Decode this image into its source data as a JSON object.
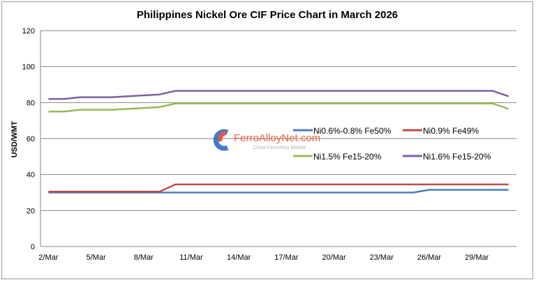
{
  "chart_data": {
    "type": "line",
    "title": "Philippines Nickel Ore CIF Price Chart in March 2026",
    "xlabel": "",
    "ylabel": "USD/WMT",
    "ylim": [
      0,
      120
    ],
    "yticks": [
      0,
      20,
      40,
      60,
      80,
      100,
      120
    ],
    "grid": "horizontal",
    "legend": "center",
    "categories": [
      "2/Mar",
      "3/Mar",
      "4/Mar",
      "5/Mar",
      "6/Mar",
      "7/Mar",
      "8/Mar",
      "9/Mar",
      "10/Mar",
      "11/Mar",
      "12/Mar",
      "13/Mar",
      "14/Mar",
      "15/Mar",
      "16/Mar",
      "17/Mar",
      "18/Mar",
      "19/Mar",
      "20/Mar",
      "21/Mar",
      "22/Mar",
      "23/Mar",
      "24/Mar",
      "25/Mar",
      "26/Mar",
      "27/Mar",
      "28/Mar",
      "29/Mar",
      "30/Mar",
      "31/Mar"
    ],
    "xtick_labels": [
      "2/Mar",
      "5/Mar",
      "8/Mar",
      "11/Mar",
      "14/Mar",
      "17/Mar",
      "20/Mar",
      "23/Mar",
      "26/Mar",
      "29/Mar"
    ],
    "series": [
      {
        "name": "Ni0.6%-0.8% Fe50%",
        "color": "#4a7ebb",
        "values": [
          30,
          30,
          30,
          30,
          30,
          30,
          30,
          30,
          30,
          30,
          30,
          30,
          30,
          30,
          30,
          30,
          30,
          30,
          30,
          30,
          30,
          30,
          30,
          30,
          31.5,
          31.5,
          31.5,
          31.5,
          31.5,
          31.5
        ]
      },
      {
        "name": "Ni0.9% Fe49%",
        "color": "#be4b48",
        "values": [
          30.5,
          30.5,
          30.5,
          30.5,
          30.5,
          30.5,
          30.5,
          30.5,
          34.5,
          34.5,
          34.5,
          34.5,
          34.5,
          34.5,
          34.5,
          34.5,
          34.5,
          34.5,
          34.5,
          34.5,
          34.5,
          34.5,
          34.5,
          34.5,
          34.5,
          34.5,
          34.5,
          34.5,
          34.5,
          34.5
        ]
      },
      {
        "name": "Ni1.5% Fe15-20%",
        "color": "#98b954",
        "values": [
          75,
          75,
          76,
          76,
          76,
          76.5,
          77,
          77.5,
          79.5,
          79.5,
          79.5,
          79.5,
          79.5,
          79.5,
          79.5,
          79.5,
          79.5,
          79.5,
          79.5,
          79.5,
          79.5,
          79.5,
          79.5,
          79.5,
          79.5,
          79.5,
          79.5,
          79.5,
          79.5,
          76.5
        ]
      },
      {
        "name": "Ni1.6% Fe15-20%",
        "color": "#7d60a0",
        "values": [
          82,
          82,
          83,
          83,
          83,
          83.5,
          84,
          84.5,
          86.5,
          86.5,
          86.5,
          86.5,
          86.5,
          86.5,
          86.5,
          86.5,
          86.5,
          86.5,
          86.5,
          86.5,
          86.5,
          86.5,
          86.5,
          86.5,
          86.5,
          86.5,
          86.5,
          86.5,
          86.5,
          83.5
        ]
      }
    ]
  },
  "watermark": {
    "brand": "FerroAlloyNet.com",
    "tagline": "China FerroAlloy Market"
  }
}
